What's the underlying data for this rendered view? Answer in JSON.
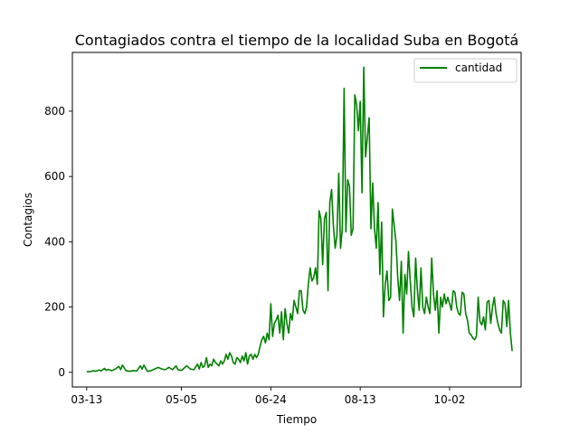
{
  "chart_data": {
    "type": "line",
    "title": "Contagiados contra el tiempo de la localidad Suba en Bogotá",
    "xlabel": "Tiempo",
    "ylabel": "Contagios",
    "x_start": "2020-03-13",
    "x_ticks": [
      "03-13",
      "05-05",
      "06-24",
      "08-13",
      "10-02"
    ],
    "x_tick_days": [
      0,
      53,
      103,
      153,
      203
    ],
    "xlim_days": [
      -8,
      243
    ],
    "ylim": [
      -45,
      980
    ],
    "y_ticks": [
      0,
      200,
      400,
      600,
      800
    ],
    "grid": false,
    "legend_placement": "top-right",
    "series": [
      {
        "name": "cantidad",
        "color": "#008000",
        "values": [
          [
            0,
            2
          ],
          [
            2,
            2
          ],
          [
            4,
            5
          ],
          [
            5,
            3
          ],
          [
            7,
            7
          ],
          [
            8,
            4
          ],
          [
            10,
            12
          ],
          [
            11,
            6
          ],
          [
            12,
            9
          ],
          [
            14,
            5
          ],
          [
            16,
            10
          ],
          [
            18,
            18
          ],
          [
            19,
            8
          ],
          [
            20,
            22
          ],
          [
            22,
            5
          ],
          [
            24,
            3
          ],
          [
            26,
            5
          ],
          [
            28,
            4
          ],
          [
            30,
            20
          ],
          [
            31,
            10
          ],
          [
            32,
            22
          ],
          [
            34,
            3
          ],
          [
            36,
            5
          ],
          [
            38,
            10
          ],
          [
            40,
            15
          ],
          [
            42,
            10
          ],
          [
            44,
            8
          ],
          [
            46,
            15
          ],
          [
            48,
            8
          ],
          [
            50,
            20
          ],
          [
            51,
            8
          ],
          [
            53,
            6
          ],
          [
            55,
            15
          ],
          [
            56,
            20
          ],
          [
            58,
            10
          ],
          [
            60,
            8
          ],
          [
            62,
            25
          ],
          [
            63,
            10
          ],
          [
            64,
            30
          ],
          [
            65,
            15
          ],
          [
            66,
            20
          ],
          [
            67,
            45
          ],
          [
            68,
            15
          ],
          [
            69,
            25
          ],
          [
            70,
            20
          ],
          [
            71,
            40
          ],
          [
            72,
            30
          ],
          [
            73,
            25
          ],
          [
            74,
            20
          ],
          [
            75,
            35
          ],
          [
            76,
            25
          ],
          [
            77,
            35
          ],
          [
            78,
            55
          ],
          [
            79,
            40
          ],
          [
            80,
            60
          ],
          [
            81,
            50
          ],
          [
            82,
            30
          ],
          [
            83,
            25
          ],
          [
            84,
            45
          ],
          [
            85,
            40
          ],
          [
            86,
            30
          ],
          [
            87,
            50
          ],
          [
            88,
            35
          ],
          [
            89,
            60
          ],
          [
            90,
            25
          ],
          [
            91,
            50
          ],
          [
            92,
            55
          ],
          [
            93,
            40
          ],
          [
            94,
            55
          ],
          [
            95,
            45
          ],
          [
            96,
            55
          ],
          [
            97,
            80
          ],
          [
            98,
            100
          ],
          [
            99,
            110
          ],
          [
            100,
            90
          ],
          [
            101,
            120
          ],
          [
            102,
            100
          ],
          [
            103,
            210
          ],
          [
            104,
            110
          ],
          [
            105,
            150
          ],
          [
            106,
            160
          ],
          [
            107,
            175
          ],
          [
            108,
            120
          ],
          [
            109,
            185
          ],
          [
            110,
            100
          ],
          [
            111,
            195
          ],
          [
            112,
            150
          ],
          [
            113,
            120
          ],
          [
            114,
            180
          ],
          [
            115,
            160
          ],
          [
            116,
            220
          ],
          [
            117,
            200
          ],
          [
            118,
            180
          ],
          [
            119,
            250
          ],
          [
            120,
            250
          ],
          [
            121,
            190
          ],
          [
            122,
            180
          ],
          [
            123,
            200
          ],
          [
            124,
            270
          ],
          [
            125,
            320
          ],
          [
            126,
            280
          ],
          [
            127,
            290
          ],
          [
            128,
            320
          ],
          [
            129,
            270
          ],
          [
            130,
            495
          ],
          [
            131,
            470
          ],
          [
            132,
            330
          ],
          [
            133,
            470
          ],
          [
            134,
            490
          ],
          [
            135,
            250
          ],
          [
            136,
            520
          ],
          [
            137,
            560
          ],
          [
            138,
            450
          ],
          [
            139,
            380
          ],
          [
            140,
            420
          ],
          [
            141,
            610
          ],
          [
            142,
            380
          ],
          [
            143,
            440
          ],
          [
            144,
            870
          ],
          [
            145,
            430
          ],
          [
            146,
            590
          ],
          [
            147,
            570
          ],
          [
            148,
            420
          ],
          [
            149,
            440
          ],
          [
            150,
            850
          ],
          [
            151,
            820
          ],
          [
            152,
            740
          ],
          [
            153,
            830
          ],
          [
            154,
            550
          ],
          [
            155,
            935
          ],
          [
            156,
            660
          ],
          [
            157,
            720
          ],
          [
            158,
            780
          ],
          [
            159,
            440
          ],
          [
            160,
            580
          ],
          [
            161,
            440
          ],
          [
            162,
            380
          ],
          [
            163,
            520
          ],
          [
            164,
            300
          ],
          [
            165,
            460
          ],
          [
            166,
            170
          ],
          [
            167,
            270
          ],
          [
            168,
            310
          ],
          [
            169,
            220
          ],
          [
            170,
            230
          ],
          [
            171,
            500
          ],
          [
            172,
            450
          ],
          [
            173,
            400
          ],
          [
            174,
            290
          ],
          [
            175,
            220
          ],
          [
            176,
            340
          ],
          [
            177,
            120
          ],
          [
            178,
            300
          ],
          [
            179,
            240
          ],
          [
            180,
            370
          ],
          [
            181,
            280
          ],
          [
            182,
            200
          ],
          [
            183,
            170
          ],
          [
            184,
            350
          ],
          [
            185,
            250
          ],
          [
            186,
            190
          ],
          [
            187,
            320
          ],
          [
            188,
            200
          ],
          [
            189,
            180
          ],
          [
            190,
            230
          ],
          [
            191,
            200
          ],
          [
            192,
            180
          ],
          [
            193,
            350
          ],
          [
            194,
            240
          ],
          [
            195,
            190
          ],
          [
            196,
            250
          ],
          [
            197,
            120
          ],
          [
            198,
            230
          ],
          [
            199,
            200
          ],
          [
            200,
            240
          ],
          [
            201,
            210
          ],
          [
            202,
            230
          ],
          [
            203,
            210
          ],
          [
            204,
            190
          ],
          [
            205,
            250
          ],
          [
            206,
            245
          ],
          [
            207,
            200
          ],
          [
            208,
            180
          ],
          [
            209,
            175
          ],
          [
            210,
            245
          ],
          [
            211,
            240
          ],
          [
            212,
            180
          ],
          [
            213,
            160
          ],
          [
            214,
            120
          ],
          [
            215,
            115
          ],
          [
            216,
            105
          ],
          [
            217,
            100
          ],
          [
            218,
            110
          ],
          [
            219,
            230
          ],
          [
            220,
            155
          ],
          [
            221,
            145
          ],
          [
            222,
            170
          ],
          [
            223,
            130
          ],
          [
            224,
            215
          ],
          [
            225,
            220
          ],
          [
            226,
            150
          ],
          [
            227,
            200
          ],
          [
            228,
            230
          ],
          [
            229,
            180
          ],
          [
            230,
            150
          ],
          [
            231,
            130
          ],
          [
            232,
            120
          ],
          [
            233,
            220
          ],
          [
            234,
            210
          ],
          [
            235,
            140
          ],
          [
            236,
            220
          ],
          [
            237,
            120
          ],
          [
            238,
            65
          ]
        ]
      }
    ]
  }
}
